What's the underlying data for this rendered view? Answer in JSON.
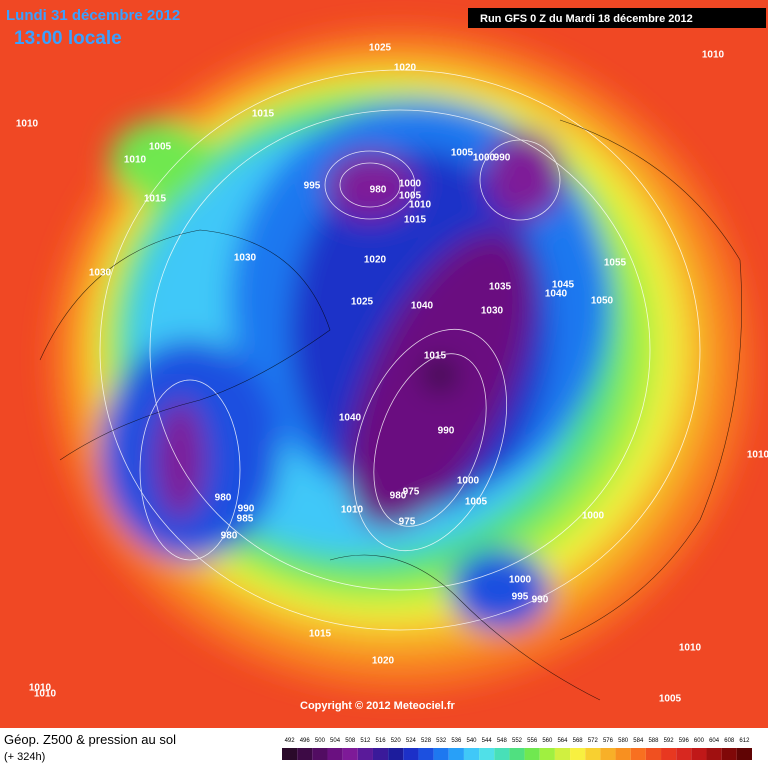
{
  "header": {
    "date": "Lundi 31 décembre 2012",
    "time": "13:00 locale",
    "run": "Run GFS 0 Z du Mardi 18 décembre 2012"
  },
  "copyright": "Copyright © 2012 Meteociel.fr",
  "footer": {
    "title": "Géop. Z500 & pression au sol",
    "lead": "(+ 324h)"
  },
  "isobar_labels": [
    "1025",
    "1020",
    "1010",
    "1010",
    "1015",
    "1005",
    "1010",
    "1015",
    "995",
    "980",
    "1000",
    "1005",
    "1010",
    "1015",
    "1005",
    "1000",
    "990",
    "1030",
    "1030",
    "1020",
    "1025",
    "1040",
    "1035",
    "1030",
    "1040",
    "1045",
    "1050",
    "1055",
    "1015",
    "1040",
    "990",
    "1000",
    "1005",
    "1010",
    "980",
    "975",
    "975",
    "980",
    "990",
    "985",
    "980",
    "1000",
    "1000",
    "995",
    "990",
    "1015",
    "1020",
    "1010",
    "1005",
    "1010",
    "1010",
    "1010"
  ],
  "scale": {
    "values": [
      492,
      496,
      500,
      504,
      508,
      512,
      516,
      520,
      524,
      528,
      532,
      536,
      540,
      544,
      548,
      552,
      556,
      560,
      564,
      568,
      572,
      576,
      580,
      584,
      588,
      592,
      596,
      600,
      604,
      608,
      612
    ],
    "colors": [
      "#2a0a2a",
      "#3d0a45",
      "#520c62",
      "#6a1080",
      "#7e1a98",
      "#5a1a9a",
      "#3a1a9a",
      "#1c1c9c",
      "#1c30c8",
      "#1c50e0",
      "#1e78f0",
      "#28a0f8",
      "#40c8f8",
      "#50e0e8",
      "#48e0b8",
      "#50e080",
      "#70e850",
      "#a0f040",
      "#d0f040",
      "#f8f040",
      "#f8d030",
      "#f8b028",
      "#f89020",
      "#f87020",
      "#f05020",
      "#e83820",
      "#d82820",
      "#c01818",
      "#a01010",
      "#800808",
      "#600404"
    ]
  }
}
